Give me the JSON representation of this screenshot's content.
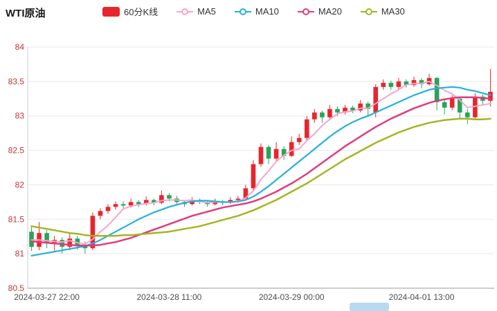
{
  "header": {
    "title": "WTI原油"
  },
  "legend": [
    {
      "id": "kline",
      "label": "60分K线",
      "type": "candlestick",
      "color": "#e8252c"
    },
    {
      "id": "ma5",
      "label": "MA5",
      "type": "line",
      "color": "#f5a6c9"
    },
    {
      "id": "ma10",
      "label": "MA10",
      "type": "line",
      "color": "#23b0dd"
    },
    {
      "id": "ma20",
      "label": "MA20",
      "type": "line",
      "color": "#e23a7c"
    },
    {
      "id": "ma30",
      "label": "MA30",
      "type": "line",
      "color": "#a4b51f"
    }
  ],
  "scrollbar": {
    "color": "#b9d9f1"
  },
  "chart_data": {
    "type": "candlestick",
    "title": "WTI原油",
    "interval_label": "60分K线",
    "ylim": [
      80.5,
      84
    ],
    "y_ticks": [
      84,
      83.5,
      83,
      82.5,
      82,
      81.5,
      81,
      80.5
    ],
    "x_tick_labels": [
      "2024-03-27 22:00",
      "2024-03-28 11:00",
      "2024-03-29 00:00",
      "2024-04-01 13:00"
    ],
    "x_tick_indices": [
      2,
      18,
      34,
      51
    ],
    "grid": true,
    "legend_position": "top",
    "colors": {
      "up": "#e8252c",
      "down": "#2aa35a",
      "grid": "#e8e8e8",
      "axis": "#999999",
      "y_axis_line": "#cccccc",
      "y_label": "#c13530",
      "x_label": "#4d4d4d",
      "background": "#ffffff"
    },
    "candles": [
      [
        81.32,
        81.1,
        81.04,
        81.4
      ],
      [
        81.1,
        81.3,
        81.05,
        81.46
      ],
      [
        81.3,
        81.15,
        81.08,
        81.34
      ],
      [
        81.15,
        81.2,
        81.02,
        81.26
      ],
      [
        81.2,
        81.1,
        81.0,
        81.24
      ],
      [
        81.1,
        81.22,
        81.05,
        81.3
      ],
      [
        81.22,
        81.12,
        81.06,
        81.26
      ],
      [
        81.12,
        81.08,
        81.0,
        81.18
      ],
      [
        81.08,
        81.55,
        81.05,
        81.6
      ],
      [
        81.55,
        81.62,
        81.5,
        81.66
      ],
      [
        81.62,
        81.68,
        81.58,
        81.72
      ],
      [
        81.68,
        81.72,
        81.64,
        81.76
      ],
      [
        81.72,
        81.7,
        81.66,
        81.76
      ],
      [
        81.7,
        81.75,
        81.67,
        81.8
      ],
      [
        81.75,
        81.72,
        81.68,
        81.78
      ],
      [
        81.72,
        81.78,
        81.7,
        81.83
      ],
      [
        81.78,
        81.74,
        81.7,
        81.8
      ],
      [
        81.74,
        81.85,
        81.72,
        81.92
      ],
      [
        81.85,
        81.8,
        81.76,
        81.88
      ],
      [
        81.8,
        81.75,
        81.72,
        81.84
      ],
      [
        81.75,
        81.72,
        81.68,
        81.78
      ],
      [
        81.72,
        81.78,
        81.7,
        81.82
      ],
      [
        81.78,
        81.75,
        81.72,
        81.8
      ],
      [
        81.75,
        81.72,
        81.68,
        81.78
      ],
      [
        81.72,
        81.76,
        81.7,
        81.8
      ],
      [
        81.76,
        81.74,
        81.7,
        81.78
      ],
      [
        81.74,
        81.78,
        81.72,
        81.82
      ],
      [
        81.78,
        81.8,
        81.74,
        81.84
      ],
      [
        81.8,
        81.95,
        81.78,
        82.0
      ],
      [
        81.95,
        82.3,
        81.92,
        82.36
      ],
      [
        82.3,
        82.55,
        82.26,
        82.6
      ],
      [
        82.55,
        82.38,
        82.3,
        82.58
      ],
      [
        82.38,
        82.52,
        82.34,
        82.62
      ],
      [
        82.52,
        82.42,
        82.36,
        82.56
      ],
      [
        82.42,
        82.62,
        82.4,
        82.7
      ],
      [
        82.62,
        82.68,
        82.58,
        82.74
      ],
      [
        82.68,
        82.95,
        82.64,
        83.0
      ],
      [
        82.95,
        83.05,
        82.9,
        83.1
      ],
      [
        83.05,
        82.98,
        82.9,
        83.08
      ],
      [
        82.98,
        83.1,
        82.95,
        83.16
      ],
      [
        83.1,
        83.05,
        83.0,
        83.14
      ],
      [
        83.05,
        83.12,
        83.02,
        83.16
      ],
      [
        83.12,
        83.08,
        83.04,
        83.15
      ],
      [
        83.08,
        83.18,
        83.05,
        83.23
      ],
      [
        83.18,
        83.1,
        83.0,
        83.21
      ],
      [
        83.05,
        83.42,
        82.98,
        83.46
      ],
      [
        83.42,
        83.48,
        83.38,
        83.53
      ],
      [
        83.48,
        83.42,
        83.38,
        83.51
      ],
      [
        83.42,
        83.5,
        83.39,
        83.55
      ],
      [
        83.5,
        83.45,
        83.41,
        83.53
      ],
      [
        83.45,
        83.52,
        83.42,
        83.57
      ],
      [
        83.52,
        83.46,
        83.4,
        83.55
      ],
      [
        83.46,
        83.55,
        83.44,
        83.61
      ],
      [
        83.55,
        83.2,
        83.08,
        83.57
      ],
      [
        83.2,
        83.12,
        83.02,
        83.26
      ],
      [
        83.12,
        83.25,
        83.08,
        83.3
      ],
      [
        83.25,
        83.05,
        82.95,
        83.27
      ],
      [
        83.05,
        82.98,
        82.88,
        83.1
      ],
      [
        82.98,
        83.28,
        82.94,
        83.33
      ],
      [
        83.28,
        83.22,
        83.15,
        83.31
      ],
      [
        83.22,
        83.35,
        83.14,
        83.68
      ]
    ],
    "series": [
      {
        "name": "MA5",
        "color": "#f5a6c9",
        "width": 2,
        "values": [
          81.2,
          81.2,
          81.19,
          81.18,
          81.17,
          81.19,
          81.16,
          81.14,
          81.21,
          81.32,
          81.41,
          81.53,
          81.65,
          81.69,
          81.71,
          81.73,
          81.74,
          81.77,
          81.78,
          81.78,
          81.77,
          81.78,
          81.76,
          81.74,
          81.75,
          81.75,
          81.75,
          81.76,
          81.81,
          81.91,
          82.08,
          82.2,
          82.34,
          82.43,
          82.5,
          82.52,
          82.64,
          82.74,
          82.86,
          82.95,
          83.03,
          83.06,
          83.07,
          83.11,
          83.11,
          83.18,
          83.25,
          83.32,
          83.38,
          83.45,
          83.47,
          83.47,
          83.5,
          83.44,
          83.37,
          83.32,
          83.23,
          83.12,
          83.14,
          83.16,
          83.18
        ]
      },
      {
        "name": "MA10",
        "color": "#23b0dd",
        "width": 2.2,
        "values": [
          80.97,
          80.99,
          81.01,
          81.03,
          81.05,
          81.07,
          81.09,
          81.11,
          81.15,
          81.2,
          81.26,
          81.32,
          81.38,
          81.44,
          81.5,
          81.55,
          81.6,
          81.64,
          81.68,
          81.71,
          81.74,
          81.76,
          81.77,
          81.77,
          81.76,
          81.75,
          81.75,
          81.76,
          81.78,
          81.83,
          81.9,
          81.98,
          82.07,
          82.16,
          82.25,
          82.34,
          82.43,
          82.52,
          82.61,
          82.7,
          82.78,
          82.85,
          82.91,
          82.96,
          83.0,
          83.05,
          83.1,
          83.15,
          83.2,
          83.25,
          83.3,
          83.34,
          83.38,
          83.4,
          83.41,
          83.42,
          83.41,
          83.38,
          83.36,
          83.33,
          83.3
        ]
      },
      {
        "name": "MA20",
        "color": "#e23a7c",
        "width": 2.5,
        "values": [
          81.18,
          81.17,
          81.16,
          81.15,
          81.14,
          81.13,
          81.12,
          81.12,
          81.12,
          81.13,
          81.15,
          81.17,
          81.2,
          81.23,
          81.27,
          81.31,
          81.35,
          81.39,
          81.43,
          81.47,
          81.51,
          81.55,
          81.58,
          81.61,
          81.64,
          81.67,
          81.69,
          81.71,
          81.73,
          81.76,
          81.8,
          81.85,
          81.9,
          81.96,
          82.02,
          82.09,
          82.16,
          82.24,
          82.32,
          82.4,
          82.48,
          82.56,
          82.63,
          82.7,
          82.77,
          82.84,
          82.9,
          82.96,
          83.01,
          83.06,
          83.11,
          83.15,
          83.19,
          83.22,
          83.24,
          83.26,
          83.27,
          83.27,
          83.27,
          83.26,
          83.25
        ]
      },
      {
        "name": "MA30",
        "color": "#a4b51f",
        "width": 2.5,
        "values": [
          81.4,
          81.38,
          81.36,
          81.34,
          81.32,
          81.3,
          81.29,
          81.27,
          81.26,
          81.26,
          81.26,
          81.26,
          81.27,
          81.27,
          81.28,
          81.29,
          81.3,
          81.31,
          81.32,
          81.34,
          81.36,
          81.38,
          81.4,
          81.43,
          81.46,
          81.49,
          81.52,
          81.55,
          81.59,
          81.63,
          81.68,
          81.73,
          81.78,
          81.84,
          81.9,
          81.96,
          82.02,
          82.09,
          82.16,
          82.23,
          82.3,
          82.37,
          82.43,
          82.49,
          82.55,
          82.61,
          82.66,
          82.71,
          82.76,
          82.8,
          82.84,
          82.87,
          82.9,
          82.92,
          82.94,
          82.95,
          82.96,
          82.96,
          82.95,
          82.95,
          82.96
        ]
      }
    ]
  }
}
